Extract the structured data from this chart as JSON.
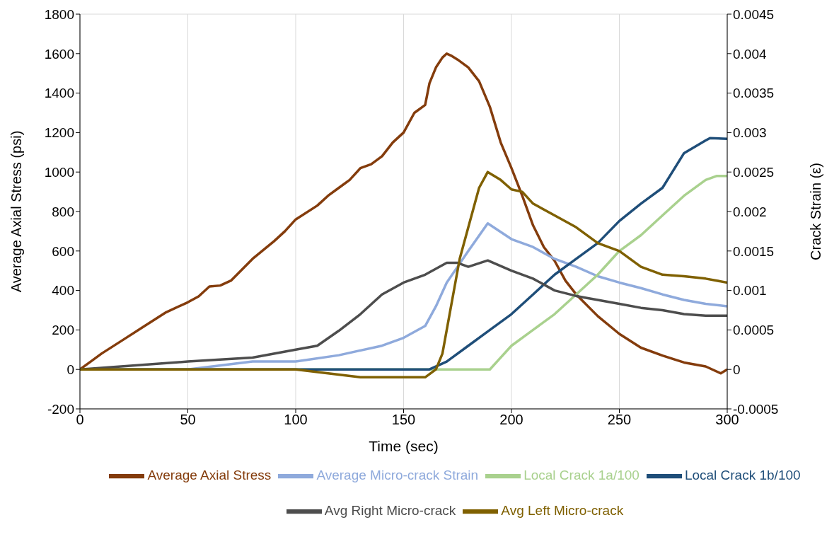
{
  "chart_data": {
    "type": "line",
    "xlabel": "Time (sec)",
    "ylabel": "Average Axial Stress (psi)",
    "y2label": "Crack Strain (ε)",
    "xlim": [
      0,
      300
    ],
    "xticks": [
      0,
      50,
      100,
      150,
      200,
      250,
      300
    ],
    "ylim": [
      -200,
      1800
    ],
    "yticks": [
      -200,
      0,
      200,
      400,
      600,
      800,
      1000,
      1200,
      1400,
      1600,
      1800
    ],
    "y2lim": [
      -0.0005,
      0.0045
    ],
    "y2ticks": [
      -0.0005,
      0,
      0.0005,
      0.001,
      0.0015,
      0.002,
      0.0025,
      0.003,
      0.0035,
      0.004,
      0.0045
    ],
    "grid": true,
    "legend": "bottom",
    "marker": "none",
    "line_style": "solid",
    "series": [
      {
        "name": "Average Axial Stress",
        "color": "#843c0c",
        "x": [
          0,
          5,
          10,
          20,
          30,
          40,
          50,
          55,
          60,
          65,
          70,
          80,
          90,
          95,
          100,
          110,
          115,
          120,
          125,
          130,
          135,
          140,
          145,
          150,
          155,
          160,
          162,
          165,
          168,
          170,
          172,
          175,
          180,
          185,
          190,
          195,
          200,
          205,
          210,
          215,
          220,
          225,
          230,
          240,
          250,
          260,
          270,
          280,
          290,
          297,
          300
        ],
        "values": [
          0,
          40,
          80,
          150,
          220,
          290,
          340,
          370,
          420,
          425,
          450,
          560,
          650,
          700,
          760,
          830,
          880,
          920,
          960,
          1020,
          1040,
          1080,
          1150,
          1200,
          1300,
          1340,
          1450,
          1530,
          1580,
          1600,
          1590,
          1570,
          1530,
          1460,
          1330,
          1150,
          1020,
          880,
          730,
          620,
          550,
          450,
          380,
          270,
          180,
          110,
          70,
          35,
          15,
          -20,
          0
        ]
      },
      {
        "name": "Average Micro-crack Strain",
        "color": "#8faadc",
        "axis": "y2",
        "x": [
          0,
          50,
          80,
          100,
          120,
          140,
          150,
          160,
          165,
          170,
          175,
          180,
          189,
          200,
          210,
          220,
          230,
          240,
          250,
          260,
          270,
          280,
          290,
          300
        ],
        "values": [
          0,
          0,
          0.0001,
          0.0001,
          0.00018,
          0.0003,
          0.0004,
          0.00055,
          0.0008,
          0.0011,
          0.0013,
          0.0015,
          0.00185,
          0.00165,
          0.00155,
          0.0014,
          0.0013,
          0.00118,
          0.0011,
          0.00103,
          0.00095,
          0.00088,
          0.00083,
          0.0008
        ]
      },
      {
        "name": "Local Crack 1a/100",
        "color": "#a9d18e",
        "axis": "y2",
        "x": [
          0,
          100,
          188,
          190,
          200,
          210,
          220,
          230,
          240,
          250,
          260,
          270,
          280,
          290,
          295,
          300
        ],
        "values": [
          0,
          0,
          0,
          0,
          0.0003,
          0.0005,
          0.0007,
          0.00095,
          0.0012,
          0.0015,
          0.0017,
          0.00195,
          0.0022,
          0.0024,
          0.00245,
          0.00245
        ]
      },
      {
        "name": "Local Crack 1b/100",
        "color": "#1f4e79",
        "axis": "y2",
        "x": [
          0,
          100,
          162,
          170,
          180,
          190,
          200,
          210,
          220,
          230,
          240,
          250,
          260,
          270,
          280,
          290,
          292,
          300
        ],
        "values": [
          0,
          0,
          0,
          0.0001,
          0.0003,
          0.0005,
          0.0007,
          0.00095,
          0.0012,
          0.0014,
          0.0016,
          0.00188,
          0.0021,
          0.0023,
          0.00274,
          0.0029,
          0.00293,
          0.00292
        ]
      },
      {
        "name": "Avg Right Micro-crack",
        "color": "#4d4d4d",
        "axis": "y2",
        "x": [
          0,
          50,
          80,
          100,
          110,
          120,
          130,
          140,
          150,
          160,
          170,
          175,
          180,
          189,
          200,
          210,
          220,
          230,
          240,
          250,
          260,
          270,
          280,
          290,
          300
        ],
        "values": [
          0,
          0.0001,
          0.00015,
          0.00025,
          0.0003,
          0.00049,
          0.0007,
          0.00095,
          0.0011,
          0.0012,
          0.00135,
          0.00135,
          0.0013,
          0.00138,
          0.00125,
          0.00115,
          0.001,
          0.00093,
          0.00088,
          0.00083,
          0.00078,
          0.00075,
          0.0007,
          0.00068,
          0.00068
        ]
      },
      {
        "name": "Avg Left Micro-crack",
        "color": "#7f6000",
        "axis": "y2",
        "x": [
          0,
          50,
          100,
          130,
          140,
          155,
          160,
          165,
          168,
          172,
          176,
          180,
          185,
          189,
          195,
          200,
          205,
          210,
          220,
          230,
          240,
          250,
          260,
          270,
          280,
          290,
          300
        ],
        "values": [
          0,
          0,
          0,
          -0.0001,
          -0.0001,
          -0.0001,
          -0.0001,
          0,
          0.0002,
          0.0008,
          0.0014,
          0.0018,
          0.0023,
          0.0025,
          0.0024,
          0.00228,
          0.00225,
          0.0021,
          0.00195,
          0.0018,
          0.0016,
          0.0015,
          0.0013,
          0.0012,
          0.00118,
          0.00115,
          0.0011
        ]
      }
    ]
  }
}
